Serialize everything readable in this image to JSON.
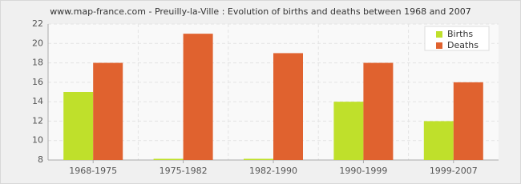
{
  "chart_data": {
    "type": "bar",
    "title": "www.map-france.com - Preuilly-la-Ville : Evolution of births and deaths between 1968 and 2007",
    "categories": [
      "1968-1975",
      "1975-1982",
      "1982-1990",
      "1990-1999",
      "1999-2007"
    ],
    "series": [
      {
        "name": "Births",
        "color": "#bfe02b",
        "values": [
          15,
          8,
          8,
          14,
          12
        ]
      },
      {
        "name": "Deaths",
        "color": "#e0622f",
        "values": [
          18,
          21,
          19,
          18,
          16
        ]
      }
    ],
    "ylim": [
      8,
      22
    ],
    "yticks": [
      8,
      10,
      12,
      14,
      16,
      18,
      20,
      22
    ],
    "grid": true,
    "legend": "top-right"
  }
}
